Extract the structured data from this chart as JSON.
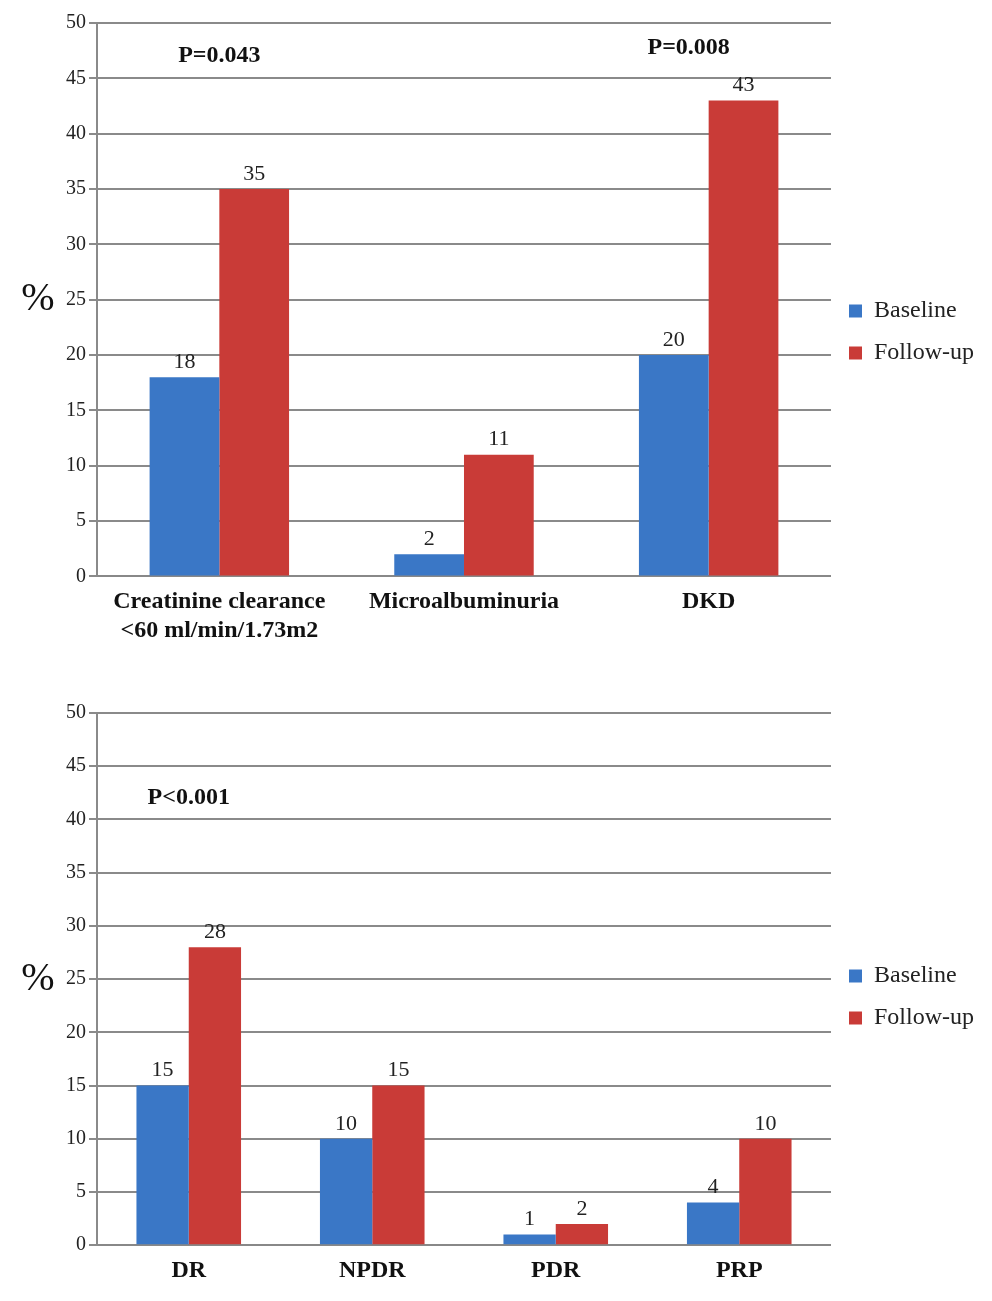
{
  "chart_data": [
    {
      "type": "bar",
      "categories": [
        "Creatinine clearance <60 ml/min/1.73m2",
        "Microalbuminuria",
        "DKD"
      ],
      "ylabel": "%",
      "ylim": [
        0,
        50
      ],
      "yticks": [
        0,
        5,
        10,
        15,
        20,
        25,
        30,
        35,
        40,
        45,
        50
      ],
      "grid": "y",
      "legend": "right",
      "data_labels": true,
      "series": [
        {
          "name": "Baseline",
          "color": "#3a77c6",
          "values": [
            18,
            2,
            20
          ]
        },
        {
          "name": "Follow-up",
          "color": "#c93b37",
          "values": [
            35,
            11,
            43
          ]
        }
      ],
      "annotations": [
        "P=0.043",
        "P=0.008"
      ]
    },
    {
      "type": "bar",
      "categories": [
        "DR",
        "NPDR",
        "PDR",
        "PRP"
      ],
      "ylabel": "%",
      "ylim": [
        0,
        50
      ],
      "yticks": [
        0,
        5,
        10,
        15,
        20,
        25,
        30,
        35,
        40,
        45,
        50
      ],
      "grid": "y",
      "legend": "right",
      "data_labels": true,
      "series": [
        {
          "name": "Baseline",
          "color": "#3a77c6",
          "values": [
            15,
            10,
            1,
            4
          ]
        },
        {
          "name": "Follow-up",
          "color": "#c93b37",
          "values": [
            28,
            15,
            2,
            10
          ]
        }
      ],
      "annotations": [
        "P<0.001"
      ]
    }
  ]
}
